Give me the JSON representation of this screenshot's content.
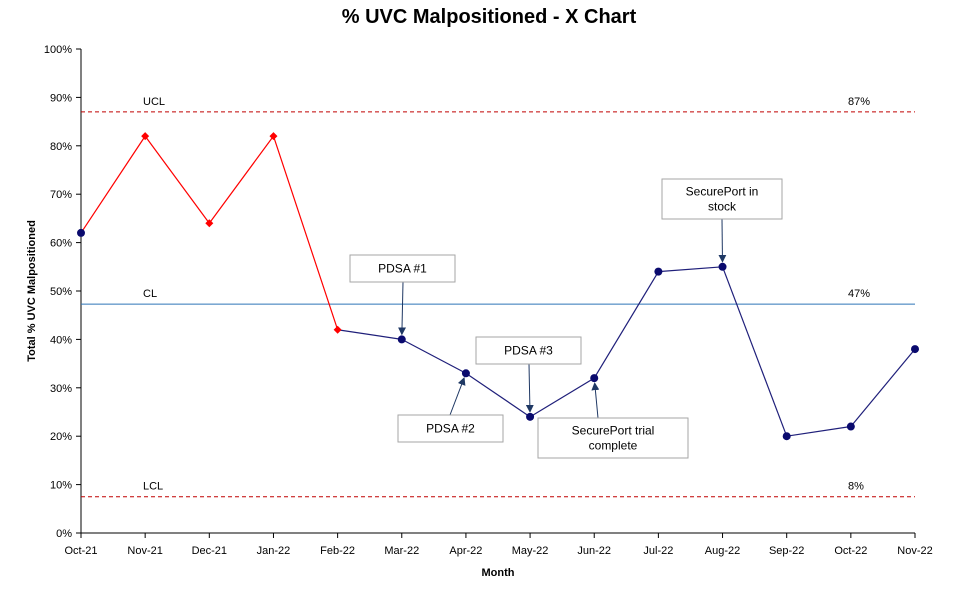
{
  "chart_data": {
    "type": "line",
    "title": "% UVC Malpositioned - X Chart",
    "xlabel": "Month",
    "ylabel": "Total % UVC Malpositioned",
    "categories": [
      "Oct-21",
      "Nov-21",
      "Dec-21",
      "Jan-22",
      "Feb-22",
      "Mar-22",
      "Apr-22",
      "May-22",
      "Jun-22",
      "Jul-22",
      "Aug-22",
      "Sep-22",
      "Oct-22",
      "Nov-22"
    ],
    "series": [
      {
        "values": [
          62,
          82,
          64,
          82,
          42,
          40,
          33,
          24,
          32,
          54,
          55,
          20,
          22,
          38
        ],
        "flagged": [
          false,
          true,
          true,
          true,
          true,
          false,
          false,
          false,
          false,
          false,
          false,
          false,
          false,
          false
        ]
      }
    ],
    "ylim": [
      0,
      100
    ],
    "yticks": [
      "0%",
      "10%",
      "20%",
      "30%",
      "40%",
      "50%",
      "60%",
      "70%",
      "80%",
      "90%",
      "100%"
    ],
    "control_lines": {
      "ucl": {
        "label": "UCL",
        "value": 87,
        "value_label": "87%"
      },
      "cl": {
        "label": "CL",
        "value": 47.3,
        "value_label": "47%"
      },
      "lcl": {
        "label": "LCL",
        "value": 7.5,
        "value_label": "8%"
      }
    },
    "annotations": [
      {
        "lines": [
          "PDSA #1"
        ],
        "target_index": 5
      },
      {
        "lines": [
          "PDSA #2"
        ],
        "target_index": 6
      },
      {
        "lines": [
          "PDSA #3"
        ],
        "target_index": 7
      },
      {
        "lines": [
          "SecurePort trial",
          "complete"
        ],
        "target_index": 8
      },
      {
        "lines": [
          "SecurePort in",
          "stock"
        ],
        "target_index": 10
      }
    ],
    "grid": false,
    "colors": {
      "point": "#0a0a6e",
      "line": "#1f1f7a",
      "flagged": "#ff0000",
      "ucl_lcl": "#c00000",
      "cl": "#2e75b6"
    }
  }
}
